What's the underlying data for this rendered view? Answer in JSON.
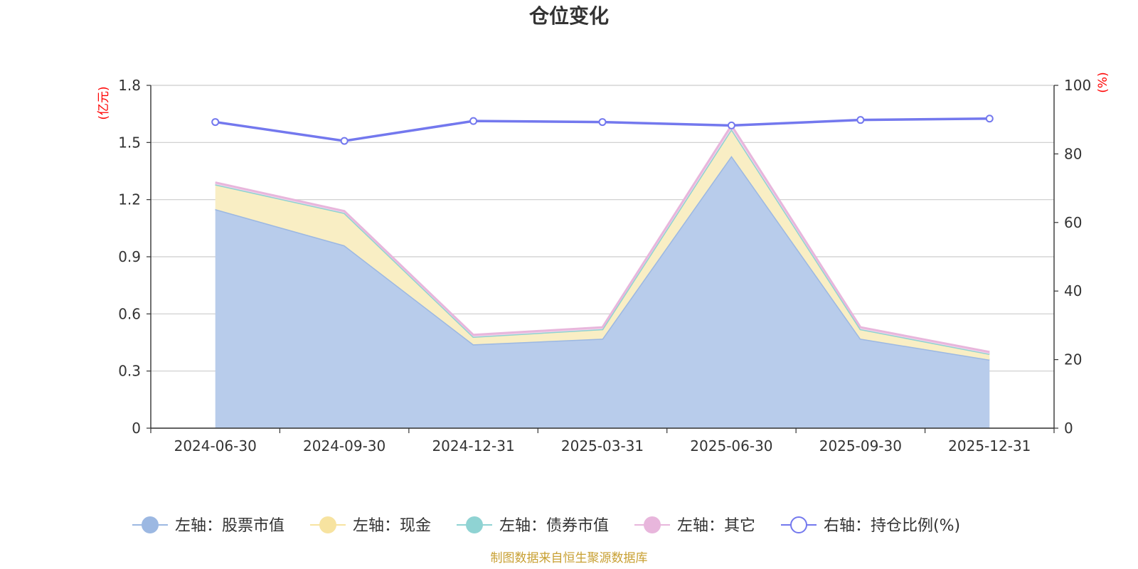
{
  "chart_data": {
    "type": "area",
    "title": "仓位变化",
    "categories": [
      "2024-06-30",
      "2024-09-30",
      "2024-12-31",
      "2025-03-31",
      "2025-06-30",
      "2025-09-30",
      "2025-12-31"
    ],
    "left_axis": {
      "unit": "(亿元)",
      "ylim": [
        0,
        1.8
      ],
      "ticks": [
        "0",
        "0.3",
        "0.6",
        "0.9",
        "1.2",
        "1.5",
        "1.8"
      ]
    },
    "right_axis": {
      "unit": "(%)",
      "ylim": [
        0,
        100
      ],
      "ticks": [
        "0",
        "20",
        "40",
        "60",
        "80",
        "100"
      ]
    },
    "stacked_series": [
      {
        "name": "左轴：股票市值",
        "color": "#9cb8e2",
        "fill": "#b8cceb",
        "values": [
          1.15,
          0.96,
          0.44,
          0.47,
          1.43,
          0.47,
          0.36
        ]
      },
      {
        "name": "左轴：现金",
        "color": "#f7e3a0",
        "fill": "#f9eec4",
        "values": [
          0.13,
          0.17,
          0.04,
          0.05,
          0.14,
          0.05,
          0.03
        ]
      },
      {
        "name": "左轴：债券市值",
        "color": "#8fd3d3",
        "fill": "#bfe5e5",
        "values": [
          0,
          0,
          0,
          0,
          0,
          0,
          0
        ]
      },
      {
        "name": "左轴：其它",
        "color": "#e8b6dc",
        "fill": "#f1d4ea",
        "values": [
          0.01,
          0.01,
          0.01,
          0.01,
          0.02,
          0.01,
          0.01
        ]
      }
    ],
    "line_series": {
      "name": "右轴：持仓比例(%)",
      "color": "#7378ee",
      "values": [
        89.3,
        83.8,
        89.6,
        89.3,
        88.3,
        89.9,
        90.3
      ]
    },
    "grid": true,
    "legend_position": "bottom"
  },
  "source_note": "制图数据来自恒生聚源数据库"
}
